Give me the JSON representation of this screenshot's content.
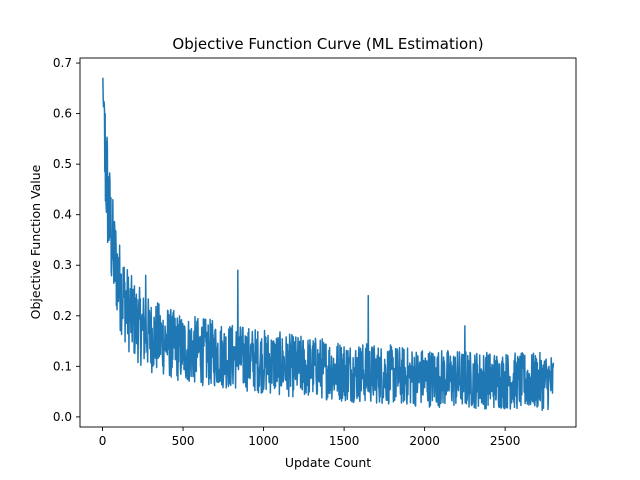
{
  "chart_data": {
    "type": "line",
    "title": "Objective Function Curve (ML Estimation)",
    "xlabel": "Update Count",
    "ylabel": "Objective Function Value",
    "xlim": [
      -140,
      2940
    ],
    "ylim": [
      -0.02,
      0.71
    ],
    "x_ticks": [
      0,
      500,
      1000,
      1500,
      2000,
      2500
    ],
    "y_ticks": [
      0.0,
      0.1,
      0.2,
      0.3,
      0.4,
      0.5,
      0.6,
      0.7
    ],
    "x_tick_labels": [
      "0",
      "500",
      "1000",
      "1500",
      "2000",
      "2500"
    ],
    "y_tick_labels": [
      "0.0",
      "0.1",
      "0.2",
      "0.3",
      "0.4",
      "0.5",
      "0.6",
      "0.7"
    ],
    "grid": false,
    "legend": null,
    "color": "#1f77b4",
    "series": [
      {
        "x": [
          0,
          10,
          20,
          30,
          40,
          50,
          60,
          75,
          90,
          105,
          120,
          140,
          160,
          180,
          200,
          230,
          260,
          300,
          350,
          400,
          450,
          500,
          600,
          700,
          800,
          900,
          1000,
          1100,
          1200,
          1300,
          1400,
          1500,
          1600,
          1700,
          1800,
          1900,
          2000,
          2100,
          2200,
          2300,
          2400,
          2500,
          2600,
          2700,
          2800
        ],
        "y": [
          0.66,
          0.55,
          0.5,
          0.45,
          0.4,
          0.37,
          0.34,
          0.31,
          0.29,
          0.26,
          0.25,
          0.23,
          0.21,
          0.2,
          0.19,
          0.18,
          0.17,
          0.16,
          0.155,
          0.15,
          0.14,
          0.135,
          0.13,
          0.125,
          0.12,
          0.115,
          0.11,
          0.105,
          0.1,
          0.098,
          0.095,
          0.09,
          0.088,
          0.085,
          0.083,
          0.08,
          0.078,
          0.077,
          0.075,
          0.074,
          0.073,
          0.072,
          0.07,
          0.07,
          0.07
        ]
      }
    ]
  }
}
